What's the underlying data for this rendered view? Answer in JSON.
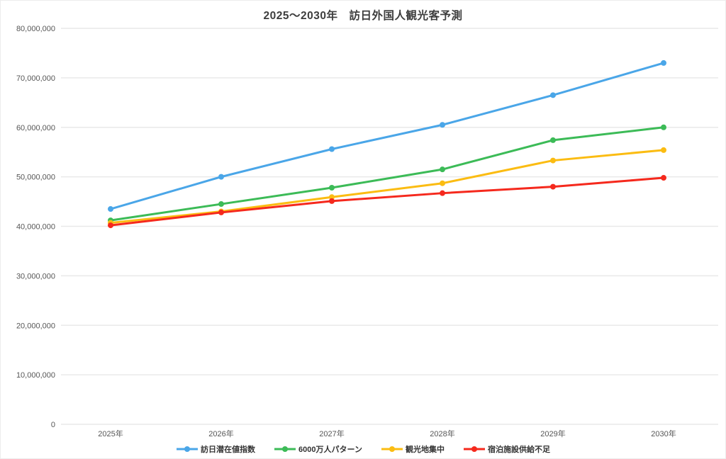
{
  "chart_data": {
    "type": "line",
    "title": "2025〜2030年　訪日外国人観光客予測",
    "categories": [
      "2025年",
      "2026年",
      "2027年",
      "2028年",
      "2029年",
      "2030年"
    ],
    "series": [
      {
        "name": "訪日潜在値指数",
        "color": "#4AA6E8",
        "values": [
          43500000,
          50000000,
          55600000,
          60500000,
          66500000,
          73000000
        ]
      },
      {
        "name": "6000万人パターン",
        "color": "#3CBB57",
        "values": [
          41200000,
          44500000,
          47800000,
          51500000,
          57400000,
          60000000
        ]
      },
      {
        "name": "観光地集中",
        "color": "#FBBC12",
        "values": [
          40700000,
          43000000,
          45900000,
          48700000,
          53300000,
          55400000
        ]
      },
      {
        "name": "宿泊施設供給不足",
        "color": "#F5291D",
        "values": [
          40200000,
          42800000,
          45100000,
          46700000,
          48000000,
          49800000
        ]
      }
    ],
    "xlabel": "",
    "ylabel": "",
    "ylim": [
      0,
      80000000
    ],
    "y_tick_step": 10000000,
    "y_tick_labels": [
      "0",
      "10,000,000",
      "20,000,000",
      "30,000,000",
      "40,000,000",
      "50,000,000",
      "60,000,000",
      "70,000,000",
      "80,000,000"
    ],
    "grid": true,
    "legend_position": "bottom"
  },
  "colors": {
    "background": "#ffffff",
    "grid": "#e9e9e9",
    "axis_text": "#565656",
    "title_text": "#3d3d3d",
    "legend_text": "#333333"
  }
}
